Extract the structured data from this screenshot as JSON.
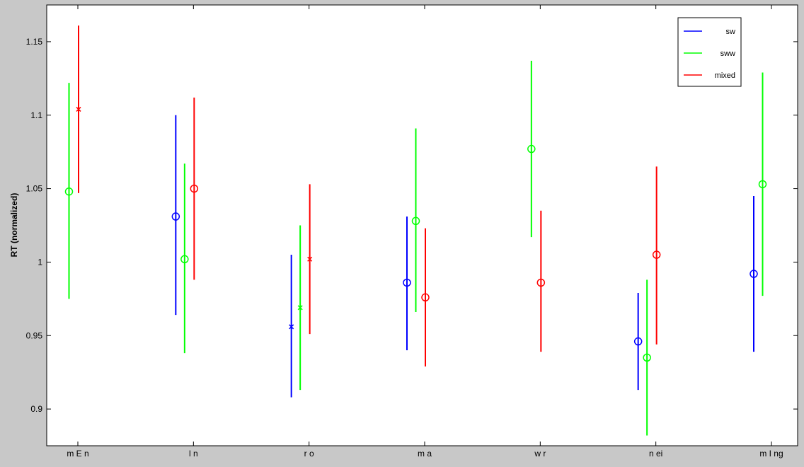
{
  "figure": {
    "background": "#c8c8c8",
    "axes_background": "#ffffff"
  },
  "chart_data": {
    "type": "errorbar",
    "ylabel": "RT (normalized)",
    "xlabel": "",
    "categories": [
      "m E n",
      "l n",
      "r o",
      "m a",
      "w r",
      "n ei",
      "m I ng"
    ],
    "ylim": [
      0.875,
      1.175
    ],
    "yticks": [
      0.9,
      0.95,
      1,
      1.05,
      1.1,
      1.15
    ],
    "ytick_labels": [
      "0.9",
      "0.95",
      "1",
      "1.05",
      "1.1",
      "1.15"
    ],
    "grid": false,
    "legend_position": "top-right",
    "series": [
      {
        "name": "sw",
        "color": "#0000ff",
        "points": [
          {
            "category": "m E n",
            "value": null,
            "low": null,
            "high": null,
            "marker": "none"
          },
          {
            "category": "l n",
            "value": 1.031,
            "low": 0.964,
            "high": 1.1,
            "marker": "circle"
          },
          {
            "category": "r o",
            "value": 0.956,
            "low": 0.908,
            "high": 1.005,
            "marker": "x"
          },
          {
            "category": "m a",
            "value": 0.986,
            "low": 0.94,
            "high": 1.031,
            "marker": "circle"
          },
          {
            "category": "w r",
            "value": null,
            "low": null,
            "high": null,
            "marker": "none"
          },
          {
            "category": "n ei",
            "value": 0.946,
            "low": 0.913,
            "high": 0.979,
            "marker": "circle"
          },
          {
            "category": "m I ng",
            "value": 0.992,
            "low": 0.939,
            "high": 1.045,
            "marker": "circle"
          }
        ]
      },
      {
        "name": "sww",
        "color": "#00ff00",
        "points": [
          {
            "category": "m E n",
            "value": 1.048,
            "low": 0.975,
            "high": 1.122,
            "marker": "circle"
          },
          {
            "category": "l n",
            "value": 1.002,
            "low": 0.938,
            "high": 1.067,
            "marker": "circle"
          },
          {
            "category": "r o",
            "value": 0.969,
            "low": 0.913,
            "high": 1.025,
            "marker": "x"
          },
          {
            "category": "m a",
            "value": 1.028,
            "low": 0.966,
            "high": 1.091,
            "marker": "circle"
          },
          {
            "category": "w r",
            "value": 1.077,
            "low": 1.017,
            "high": 1.137,
            "marker": "circle"
          },
          {
            "category": "n ei",
            "value": 0.935,
            "low": 0.882,
            "high": 0.988,
            "marker": "circle"
          },
          {
            "category": "m I ng",
            "value": 1.053,
            "low": 0.977,
            "high": 1.129,
            "marker": "circle"
          }
        ]
      },
      {
        "name": "mixed",
        "color": "#ff0000",
        "points": [
          {
            "category": "m E n",
            "value": 1.104,
            "low": 1.047,
            "high": 1.161,
            "marker": "x"
          },
          {
            "category": "l n",
            "value": 1.05,
            "low": 0.988,
            "high": 1.112,
            "marker": "circle"
          },
          {
            "category": "r o",
            "value": 1.002,
            "low": 0.951,
            "high": 1.053,
            "marker": "x"
          },
          {
            "category": "m a",
            "value": 0.976,
            "low": 0.929,
            "high": 1.023,
            "marker": "circle"
          },
          {
            "category": "w r",
            "value": 0.986,
            "low": 0.939,
            "high": 1.035,
            "marker": "circle"
          },
          {
            "category": "n ei",
            "value": 1.005,
            "low": 0.944,
            "high": 1.065,
            "marker": "circle"
          },
          {
            "category": "m I ng",
            "value": null,
            "low": null,
            "high": null,
            "marker": "none"
          }
        ]
      }
    ]
  }
}
